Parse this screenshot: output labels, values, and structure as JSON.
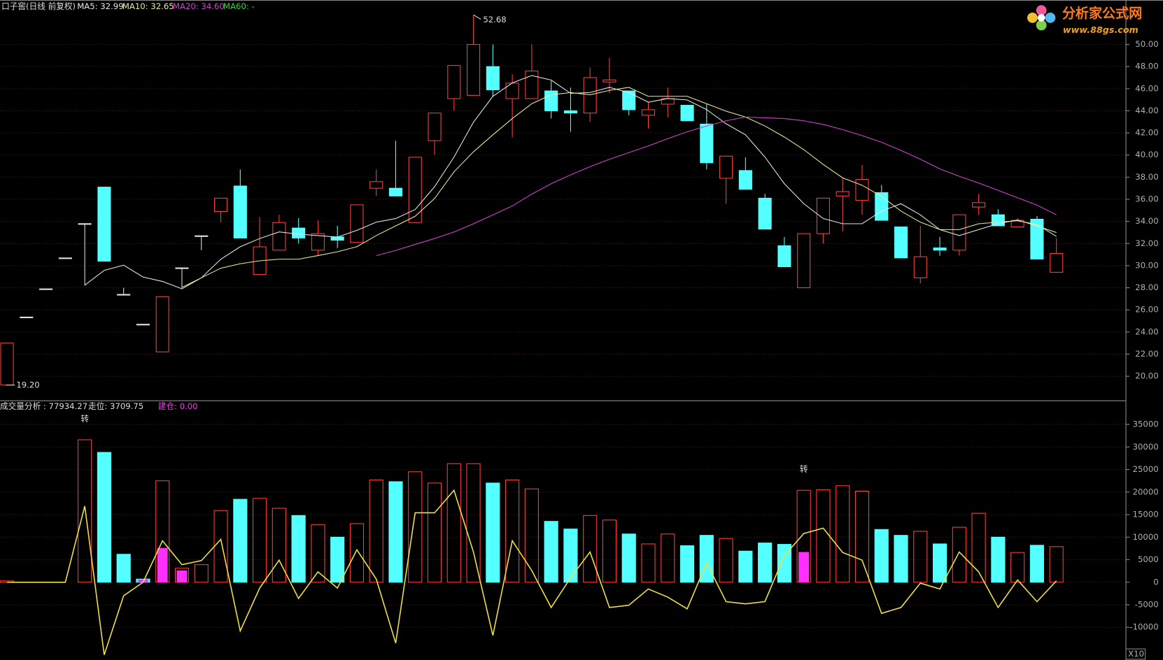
{
  "chart_data": [
    {
      "type": "candlestick",
      "title": "口子窖(日线 前复权)",
      "open": [
        19.2,
        25.35,
        27.9,
        30.7,
        33.8,
        37.1,
        27.4,
        24.7,
        22.2,
        29.8,
        32.7,
        34.9,
        37.2,
        29.2,
        31.4,
        33.4,
        31.4,
        32.6,
        32.1,
        37.0,
        37.0,
        33.9,
        41.3,
        45.1,
        45.4,
        48.0,
        45.1,
        45.1,
        45.8,
        44.0,
        43.8,
        46.6,
        45.8,
        43.6,
        44.6,
        44.5,
        42.8,
        37.9,
        38.6,
        36.1,
        31.8,
        28.0,
        32.9,
        36.3,
        35.9,
        36.6,
        33.5,
        28.9,
        31.6,
        31.4,
        35.3,
        34.6,
        33.5,
        34.2,
        29.4
      ],
      "high": [
        23.0,
        25.35,
        27.9,
        30.7,
        33.8,
        37.1,
        28.0,
        24.7,
        27.2,
        29.8,
        32.7,
        36.1,
        38.7,
        34.4,
        34.6,
        34.3,
        34.1,
        33.6,
        35.5,
        38.7,
        41.3,
        39.8,
        43.8,
        48.1,
        52.68,
        50.0,
        47.3,
        50.0,
        46.7,
        46.1,
        47.9,
        48.8,
        45.8,
        44.8,
        46.1,
        44.5,
        44.6,
        39.9,
        39.8,
        36.5,
        32.6,
        32.9,
        36.1,
        37.9,
        39.1,
        37.3,
        33.5,
        33.6,
        32.6,
        34.6,
        36.5,
        35.1,
        34.3,
        34.5,
        32.5
      ],
      "low": [
        19.2,
        25.35,
        27.9,
        30.7,
        28.2,
        30.4,
        27.4,
        24.7,
        22.2,
        28.0,
        31.4,
        33.9,
        32.5,
        29.2,
        31.4,
        32.0,
        30.9,
        31.6,
        32.1,
        36.3,
        36.3,
        33.9,
        40.0,
        44.0,
        45.4,
        45.3,
        41.6,
        45.1,
        43.3,
        42.1,
        43.0,
        45.6,
        43.6,
        42.4,
        43.4,
        43.1,
        38.7,
        35.6,
        36.9,
        33.3,
        29.9,
        28.0,
        32.0,
        33.1,
        34.6,
        34.1,
        30.7,
        28.4,
        30.9,
        30.9,
        34.6,
        33.6,
        33.5,
        30.6,
        29.4
      ],
      "close": [
        23.0,
        25.35,
        27.9,
        30.7,
        33.8,
        30.4,
        27.4,
        24.7,
        27.2,
        29.8,
        32.7,
        36.1,
        32.5,
        31.7,
        33.9,
        32.5,
        32.9,
        32.3,
        35.5,
        37.6,
        36.3,
        39.8,
        43.8,
        48.1,
        50.0,
        45.9,
        46.5,
        47.6,
        44.0,
        43.8,
        47.0,
        46.8,
        44.1,
        44.1,
        45.1,
        43.1,
        39.3,
        39.9,
        36.9,
        33.3,
        29.9,
        32.9,
        36.1,
        36.7,
        37.8,
        34.1,
        30.7,
        30.8,
        31.4,
        34.6,
        35.7,
        33.6,
        34.1,
        30.6,
        31.1
      ],
      "up_color": "#ff3c3c",
      "down_color": "#54ffff",
      "flat_color": "#e0e0e0",
      "series": [
        {
          "name": "MA5: 32.99",
          "color": "#e6e6e6",
          "values": [
            null,
            null,
            null,
            null,
            28.23,
            29.57,
            30.04,
            28.97,
            28.57,
            27.9,
            28.9,
            30.58,
            31.71,
            32.45,
            33.05,
            32.85,
            32.72,
            32.58,
            33.19,
            33.93,
            34.26,
            35.07,
            37.14,
            39.82,
            42.97,
            45.31,
            46.52,
            47.19,
            46.78,
            45.58,
            45.65,
            46.12,
            45.65,
            44.78,
            45.11,
            44.98,
            44.11,
            42.83,
            41.83,
            39.82,
            37.41,
            35.6,
            34.26,
            33.79,
            33.79,
            34.93,
            35.6,
            34.59,
            33.26,
            32.72,
            33.26,
            33.79,
            34.13,
            33.59,
            32.99
          ]
        },
        {
          "name": "MA10: 32.65",
          "color": "#eaea9a",
          "values": [
            null,
            null,
            null,
            null,
            null,
            null,
            null,
            null,
            null,
            28.03,
            28.9,
            29.77,
            30.17,
            30.44,
            30.58,
            30.58,
            30.91,
            31.25,
            31.71,
            32.72,
            33.59,
            34.46,
            36.07,
            38.48,
            40.29,
            41.83,
            43.3,
            44.64,
            45.45,
            45.65,
            45.45,
            45.85,
            46.12,
            45.31,
            45.31,
            45.31,
            44.64,
            43.97,
            43.44,
            42.63,
            41.63,
            40.49,
            39.15,
            37.94,
            37.27,
            36.27,
            34.93,
            33.93,
            33.26,
            33.26,
            33.79,
            33.93,
            34.06,
            33.72,
            32.65
          ]
        },
        {
          "name": "MA20: 34.60",
          "color": "#d040d0",
          "values": [
            null,
            null,
            null,
            null,
            null,
            null,
            null,
            null,
            null,
            null,
            null,
            null,
            null,
            null,
            null,
            null,
            null,
            null,
            null,
            30.91,
            31.38,
            31.92,
            32.45,
            33.05,
            33.79,
            34.59,
            35.4,
            36.47,
            37.41,
            38.21,
            38.95,
            39.62,
            40.22,
            40.82,
            41.49,
            42.1,
            42.63,
            43.1,
            43.44,
            43.37,
            43.3,
            43.1,
            42.77,
            42.3,
            41.76,
            41.16,
            40.42,
            39.62,
            38.75,
            38.08,
            37.47,
            36.81,
            36.14,
            35.47,
            34.6
          ]
        },
        {
          "name": "MA60: -",
          "color": "#40d040",
          "values": [
            null,
            null,
            null,
            null,
            null,
            null,
            null,
            null,
            null,
            null,
            null,
            null,
            null,
            null,
            null,
            null,
            null,
            null,
            null,
            null,
            null,
            null,
            null,
            null,
            null,
            null,
            null,
            null,
            null,
            null,
            null,
            null,
            null,
            null,
            null,
            null,
            null,
            null,
            null,
            null,
            null,
            null,
            null,
            null,
            null,
            null,
            null,
            null,
            null,
            null,
            null,
            null,
            null,
            null,
            null
          ]
        }
      ],
      "high_marker": 52.68,
      "low_marker": {
        "value": 19.2,
        "label": "19.20"
      },
      "ylim": [
        17.85,
        54.02
      ],
      "yticks": [
        {
          "value": 20,
          "label": "20.00"
        },
        {
          "value": 22,
          "label": "22.00"
        },
        {
          "value": 24,
          "label": "24.00"
        },
        {
          "value": 26,
          "label": "26.00"
        },
        {
          "value": 28,
          "label": "28.00"
        },
        {
          "value": 30,
          "label": "30.00"
        },
        {
          "value": 32,
          "label": "32.00"
        },
        {
          "value": 34,
          "label": "34.00"
        },
        {
          "value": 36,
          "label": "36.00"
        },
        {
          "value": 38,
          "label": "38.00"
        },
        {
          "value": 40,
          "label": "40.00"
        },
        {
          "value": 42,
          "label": "42.00"
        },
        {
          "value": 44,
          "label": "44.00"
        },
        {
          "value": 46,
          "label": "46.00"
        },
        {
          "value": 48,
          "label": "48.00"
        },
        {
          "value": 50,
          "label": "50.00"
        }
      ],
      "grid": true
    },
    {
      "type": "bar",
      "series": [
        {
          "name": "成交量分析 : 77934.27",
          "color": "#ff3c3c",
          "values": [
            300,
            null,
            null,
            null,
            31600,
            28800,
            6200,
            700,
            22500,
            3100,
            3900,
            15900,
            18400,
            18600,
            16400,
            14800,
            12800,
            10000,
            13000,
            22700,
            22300,
            24500,
            22000,
            26300,
            26300,
            22000,
            22700,
            20700,
            13500,
            11800,
            14800,
            13800,
            10700,
            8500,
            10700,
            8100,
            10400,
            9700,
            6900,
            8700,
            8400,
            20400,
            20500,
            21400,
            20200,
            11700,
            10400,
            11300,
            8500,
            12200,
            15300,
            10000,
            6600,
            8200,
            7900
          ]
        },
        {
          "name": "走位: 3709.75",
          "color": "#f0e040",
          "values": [
            0,
            0,
            0,
            0,
            16900,
            -16100,
            -3000,
            0,
            9200,
            3900,
            4800,
            9500,
            -10800,
            -1300,
            4900,
            -3600,
            2300,
            -1300,
            7200,
            700,
            -13500,
            15400,
            15400,
            20400,
            6700,
            -11800,
            9200,
            2600,
            -5600,
            1000,
            6700,
            -5600,
            -5100,
            -1500,
            -3300,
            -5900,
            4300,
            -4300,
            -4800,
            -4300,
            5900,
            10800,
            12000,
            6600,
            4900,
            -6900,
            -5600,
            -200,
            -1500,
            6700,
            2300,
            -5600,
            500,
            -4300,
            300
          ]
        },
        {
          "name": "建仓: 0.00",
          "color": "#ff30ff",
          "values": [
            null,
            null,
            null,
            null,
            null,
            null,
            null,
            600,
            7600,
            2600,
            null,
            null,
            null,
            null,
            null,
            null,
            null,
            null,
            null,
            null,
            null,
            null,
            null,
            null,
            null,
            null,
            null,
            null,
            null,
            null,
            null,
            null,
            null,
            null,
            null,
            null,
            null,
            null,
            null,
            null,
            null,
            6700,
            null,
            null,
            null,
            null,
            null,
            null,
            null,
            null,
            null,
            null,
            null,
            null,
            null
          ]
        }
      ],
      "annotations": [
        {
          "text": "转",
          "at": 4
        },
        {
          "text": "转",
          "at": 41
        }
      ],
      "unit_label": "X10",
      "ylim": [
        -17250,
        39600
      ],
      "yticks": [
        -10000,
        -5000,
        0,
        5000,
        10000,
        15000,
        20000,
        25000,
        30000,
        35000
      ],
      "grid": true
    }
  ],
  "logo": {
    "title": "分析家公式网",
    "url": "www.88gs.com"
  }
}
